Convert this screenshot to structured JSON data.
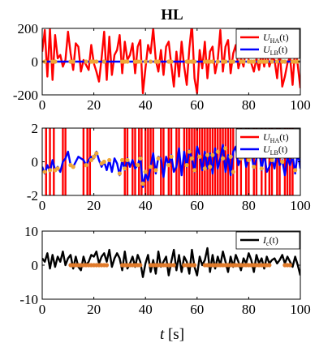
{
  "chart_data": [
    {
      "type": "line",
      "title": "HL",
      "xlim": [
        0,
        100
      ],
      "ylim": [
        -200,
        200
      ],
      "xticks": [
        0,
        20,
        40,
        60,
        80,
        100
      ],
      "yticks": [
        -200,
        0,
        200
      ],
      "xtick_labels": [
        "0",
        "20",
        "40",
        "60",
        "80",
        "100"
      ],
      "ytick_labels": [
        "-200",
        "0",
        "200"
      ],
      "legend_position": "top-right",
      "series": [
        {
          "name": "U_HA(t)",
          "color": "#ff0000",
          "x": [
            0,
            1,
            2,
            3,
            4,
            5,
            6,
            7,
            8,
            9,
            10,
            11,
            12,
            13,
            14,
            15,
            16,
            17,
            18,
            19,
            20,
            21,
            22,
            23,
            24,
            25,
            26,
            27,
            28,
            29,
            30,
            31,
            32,
            33,
            34,
            35,
            36,
            37,
            38,
            39,
            40,
            41,
            42,
            43,
            44,
            45,
            46,
            47,
            48,
            49,
            50,
            51,
            52,
            53,
            54,
            55,
            56,
            57,
            58,
            59,
            60,
            61,
            62,
            63,
            64,
            65,
            66,
            67,
            68,
            69,
            70,
            71,
            72,
            73,
            74,
            75,
            76,
            77,
            78,
            79,
            80,
            81,
            82,
            83,
            84,
            85,
            86,
            87,
            88,
            89,
            90,
            91,
            92,
            93,
            94,
            95,
            96,
            97,
            98,
            99,
            100
          ],
          "values": [
            60,
            190,
            -90,
            200,
            -110,
            160,
            20,
            40,
            -30,
            10,
            180,
            50,
            -50,
            110,
            90,
            -60,
            10,
            -20,
            -50,
            100,
            -10,
            -60,
            -120,
            20,
            180,
            -110,
            150,
            -80,
            40,
            70,
            160,
            -70,
            120,
            10,
            40,
            110,
            -70,
            90,
            130,
            -190,
            -40,
            100,
            50,
            200,
            10,
            -60,
            70,
            -80,
            90,
            120,
            -20,
            -150,
            60,
            -90,
            120,
            -30,
            -140,
            80,
            230,
            -100,
            -190,
            70,
            -40,
            120,
            -100,
            60,
            90,
            -70,
            10,
            190,
            -60,
            90,
            130,
            -70,
            50,
            100,
            -40,
            20,
            -30,
            90,
            10,
            -10,
            -60,
            20,
            -50,
            60,
            -30,
            60,
            -30,
            20,
            10,
            -100,
            70,
            -150,
            -90,
            -10,
            30,
            -140,
            90,
            -20,
            -160
          ]
        },
        {
          "name": "U_LB(t)",
          "color": "#0000ff",
          "x": [
            0,
            100
          ],
          "values": [
            0,
            0
          ]
        },
        {
          "name": "",
          "color": "#f0a838",
          "marker": "circle",
          "x": [
            1,
            4,
            5,
            11,
            12,
            17,
            19,
            20,
            21,
            24,
            31,
            32,
            33,
            36,
            37,
            38,
            40,
            42,
            44,
            45,
            49,
            50,
            56,
            57,
            58,
            59,
            63,
            64,
            65,
            66,
            68,
            70,
            71,
            73,
            74,
            77,
            78,
            80,
            81,
            82,
            84,
            85,
            86,
            87,
            89,
            91,
            93,
            94,
            97,
            98,
            99
          ],
          "values": [
            0,
            0,
            0,
            0,
            0,
            0,
            0,
            0,
            0,
            0,
            0,
            0,
            0,
            0,
            0,
            0,
            0,
            0,
            0,
            0,
            0,
            0,
            0,
            0,
            0,
            0,
            0,
            0,
            0,
            0,
            0,
            0,
            0,
            0,
            0,
            0,
            0,
            0,
            0,
            0,
            0,
            0,
            0,
            0,
            0,
            0,
            0,
            0,
            0,
            0,
            0
          ]
        }
      ]
    },
    {
      "type": "line",
      "xlim": [
        0,
        100
      ],
      "ylim": [
        -2,
        2
      ],
      "xticks": [
        0,
        20,
        40,
        60,
        80,
        100
      ],
      "yticks": [
        -2,
        0,
        2
      ],
      "xtick_labels": [
        "0",
        "20",
        "40",
        "60",
        "80",
        "100"
      ],
      "ytick_labels": [
        "-2",
        "0",
        "2"
      ],
      "legend_position": "top-right",
      "series": [
        {
          "name": "U_HA(t)",
          "color": "#ff0000",
          "style": "vertical-switching",
          "switch_x": [
            1.5,
            3,
            4.5,
            8,
            9,
            16,
            17.5,
            18.5,
            32,
            33,
            35,
            36,
            37.5,
            38.5,
            40,
            41,
            42,
            43,
            46,
            47,
            49,
            50,
            52,
            53,
            55,
            56,
            57,
            58,
            59,
            60,
            61,
            62,
            63,
            64,
            65,
            66,
            67,
            68,
            69,
            70,
            71,
            72,
            73,
            74,
            75.5,
            77,
            79,
            80,
            82,
            83,
            85,
            86.5,
            88,
            89,
            91,
            92,
            94,
            95,
            96,
            97
          ]
        },
        {
          "name": "U_LB(t)",
          "color": "#0000ff",
          "x": [
            0,
            1,
            2,
            3,
            4,
            5,
            6,
            7,
            8,
            9,
            10,
            11,
            12,
            13,
            14,
            15,
            16,
            17,
            18,
            19,
            20,
            21,
            22,
            23,
            24,
            25,
            26,
            27,
            28,
            29,
            30,
            31,
            32,
            33,
            34,
            35,
            36,
            37,
            38,
            39,
            40,
            41,
            42,
            43,
            44,
            45,
            46,
            47,
            48,
            49,
            50,
            51,
            52,
            53,
            54,
            55,
            56,
            57,
            58,
            59,
            60,
            61,
            62,
            63,
            64,
            65,
            66,
            67,
            68,
            69,
            70,
            71,
            72,
            73,
            74,
            75,
            76,
            77,
            78,
            79,
            80,
            81,
            82,
            83,
            84,
            85,
            86,
            87,
            88,
            89,
            90,
            91,
            92,
            93,
            94,
            95,
            96,
            97,
            98,
            99,
            100
          ],
          "values": [
            -0.3,
            -0.7,
            -0.2,
            -0.6,
            0.1,
            -0.5,
            -0.3,
            -0.6,
            0.0,
            0.2,
            0.6,
            -0.2,
            -0.3,
            0.0,
            0.3,
            0.2,
            0.1,
            -0.2,
            0.1,
            0.3,
            0.2,
            0.6,
            0.1,
            -0.3,
            0.0,
            -0.5,
            0.1,
            -0.6,
            0.2,
            -0.1,
            -0.8,
            0.1,
            -0.5,
            0.2,
            -0.3,
            0.1,
            -0.4,
            -0.2,
            0.3,
            -1.5,
            -0.7,
            -1.1,
            -0.3,
            0.5,
            -0.7,
            0.3,
            0.2,
            -0.9,
            0.3,
            -0.2,
            0.4,
            -0.6,
            -0.3,
            0.8,
            -0.8,
            0.6,
            -0.3,
            0.7,
            0.2,
            -0.6,
            0.9,
            0.4,
            -0.5,
            0.6,
            -0.4,
            0.5,
            -0.7,
            0.8,
            -0.4,
            0.2,
            1.0,
            -0.6,
            0.4,
            -0.8,
            0.6,
            0.9,
            -0.2,
            0.3,
            0.7,
            -0.3,
            0.2,
            0.5,
            -0.4,
            0.2,
            0.8,
            -0.5,
            0.5,
            -0.6,
            -0.3,
            0.2,
            -0.4,
            0.6,
            -0.2,
            0.1,
            -0.8,
            0.3,
            -0.2,
            0.4,
            -0.7,
            0.6,
            -0.4
          ]
        },
        {
          "name": "",
          "color": "#f0a838",
          "marker": "circle",
          "x": [
            1,
            3,
            5,
            6,
            11,
            12,
            17,
            19,
            20,
            21,
            23,
            24,
            26,
            30,
            31,
            32,
            33,
            37,
            38,
            39,
            40,
            42,
            44,
            45,
            49,
            50,
            56,
            57,
            58,
            59,
            61,
            63,
            64,
            65,
            66,
            68,
            70,
            71,
            73,
            74,
            77,
            78,
            80,
            81,
            82,
            84,
            85,
            86,
            89,
            91,
            93,
            97,
            98
          ],
          "values": [
            -0.6,
            -0.5,
            -0.5,
            -0.4,
            -0.2,
            -0.3,
            -0.2,
            0.1,
            0.3,
            0.5,
            -0.1,
            0.0,
            0.1,
            -0.7,
            0.1,
            -0.4,
            0.1,
            -0.2,
            0.2,
            -1.3,
            -0.6,
            -0.3,
            -0.5,
            0.2,
            -0.2,
            0.3,
            -0.2,
            0.6,
            0.2,
            -0.5,
            0.3,
            -0.4,
            0.4,
            -0.3,
            0.4,
            0.6,
            0.2,
            0.8,
            0.3,
            -0.6,
            0.2,
            0.5,
            0.1,
            0.3,
            -0.3,
            0.6,
            -0.4,
            0.4,
            0.1,
            0.5,
            0.0,
            0.3,
            -0.5
          ]
        }
      ]
    },
    {
      "type": "line",
      "xlabel": "t [s]",
      "xlim": [
        0,
        100
      ],
      "ylim": [
        -10,
        10
      ],
      "xticks": [
        0,
        20,
        40,
        60,
        80,
        100
      ],
      "yticks": [
        -10,
        0,
        10
      ],
      "xtick_labels": [
        "0",
        "20",
        "40",
        "60",
        "80",
        "100"
      ],
      "ytick_labels": [
        "-10",
        "0",
        "10"
      ],
      "legend_position": "top-right",
      "series": [
        {
          "name": "I_c(t)",
          "color": "#000000",
          "x": [
            0,
            1,
            2,
            3,
            4,
            5,
            6,
            7,
            8,
            9,
            10,
            11,
            12,
            13,
            14,
            15,
            16,
            17,
            18,
            19,
            20,
            21,
            22,
            23,
            24,
            25,
            26,
            27,
            28,
            29,
            30,
            31,
            32,
            33,
            34,
            35,
            36,
            37,
            38,
            39,
            40,
            41,
            42,
            43,
            44,
            45,
            46,
            47,
            48,
            49,
            50,
            51,
            52,
            53,
            54,
            55,
            56,
            57,
            58,
            59,
            60,
            61,
            62,
            63,
            64,
            65,
            66,
            67,
            68,
            69,
            70,
            71,
            72,
            73,
            74,
            75,
            76,
            77,
            78,
            79,
            80,
            81,
            82,
            83,
            84,
            85,
            86,
            87,
            88,
            89,
            90,
            91,
            92,
            93,
            94,
            95,
            96,
            97,
            98,
            99,
            100
          ],
          "values": [
            2,
            1,
            3.5,
            -1,
            3,
            -0.5,
            2.5,
            1,
            4,
            0,
            2,
            3,
            -1,
            2.5,
            -0.5,
            -1.5,
            2.5,
            0,
            1,
            3,
            2.5,
            4,
            0.5,
            2.5,
            3.5,
            1,
            4.5,
            -0.5,
            2,
            3.5,
            2,
            -1.5,
            4,
            -1,
            0.5,
            2.5,
            -0.5,
            3,
            1,
            -3.5,
            0.5,
            3,
            -2,
            1.5,
            -2.5,
            4,
            -0.5,
            1,
            2.5,
            -3,
            1,
            4.5,
            -1.5,
            3,
            -2,
            2.5,
            1,
            -2.5,
            4.5,
            -0.5,
            -3,
            2.5,
            0,
            1.5,
            5,
            -2,
            3,
            -1,
            2.5,
            0,
            4,
            1,
            -2,
            2.5,
            -0.5,
            3,
            1,
            -1.5,
            2,
            0.5,
            3.5,
            1.5,
            -2,
            3,
            0.5,
            2,
            -1,
            2.5,
            0.5,
            1.5,
            2,
            0.5,
            1.5,
            3,
            0.5,
            2.5,
            1,
            -0.5,
            2.5,
            0,
            -3
          ]
        },
        {
          "name": "",
          "color": "#e07a2a",
          "marker": "circle",
          "x": [
            11,
            12,
            13,
            14,
            15,
            16,
            17,
            18,
            19,
            20,
            21,
            22,
            23,
            24,
            25,
            31,
            32,
            33,
            34,
            35,
            36,
            37,
            38,
            42,
            43,
            44,
            45,
            46,
            47,
            48,
            49,
            50,
            51,
            55,
            56,
            57,
            58,
            59,
            63,
            64,
            65,
            66,
            67,
            68,
            69,
            70,
            71,
            72,
            73,
            74,
            75,
            76,
            77,
            78,
            79,
            80,
            81,
            82,
            83,
            84,
            85,
            86,
            87,
            88,
            94,
            95,
            96
          ],
          "values": [
            0,
            0,
            0,
            0,
            0,
            0,
            0,
            0,
            0,
            0,
            0,
            0,
            0,
            0,
            0,
            0,
            0,
            0,
            0,
            0,
            0,
            0,
            0,
            0,
            0,
            0,
            0,
            0,
            0,
            0,
            0,
            0,
            0,
            0,
            0,
            0,
            0,
            0,
            0,
            0,
            0,
            0,
            0,
            0,
            0,
            0,
            0,
            0,
            0,
            0,
            0,
            0,
            0,
            0,
            0,
            0,
            0,
            0,
            0,
            0,
            0,
            0,
            0,
            0,
            0,
            0,
            0
          ]
        }
      ]
    }
  ],
  "legends": [
    [
      {
        "label": "U",
        "sub": "HA",
        "suffix": "(t)",
        "color": "#ff0000"
      },
      {
        "label": "U",
        "sub": "LB",
        "suffix": "(t)",
        "color": "#0000ff"
      }
    ],
    [
      {
        "label": "U",
        "sub": "HA",
        "suffix": "(t)",
        "color": "#ff0000"
      },
      {
        "label": "U",
        "sub": "LB",
        "suffix": "(t)",
        "color": "#0000ff"
      }
    ],
    [
      {
        "label": "I",
        "sub": "c",
        "suffix": "(t)",
        "color": "#000000"
      }
    ]
  ],
  "xlabel_text": {
    "var": "t",
    "unit": " [s]"
  }
}
